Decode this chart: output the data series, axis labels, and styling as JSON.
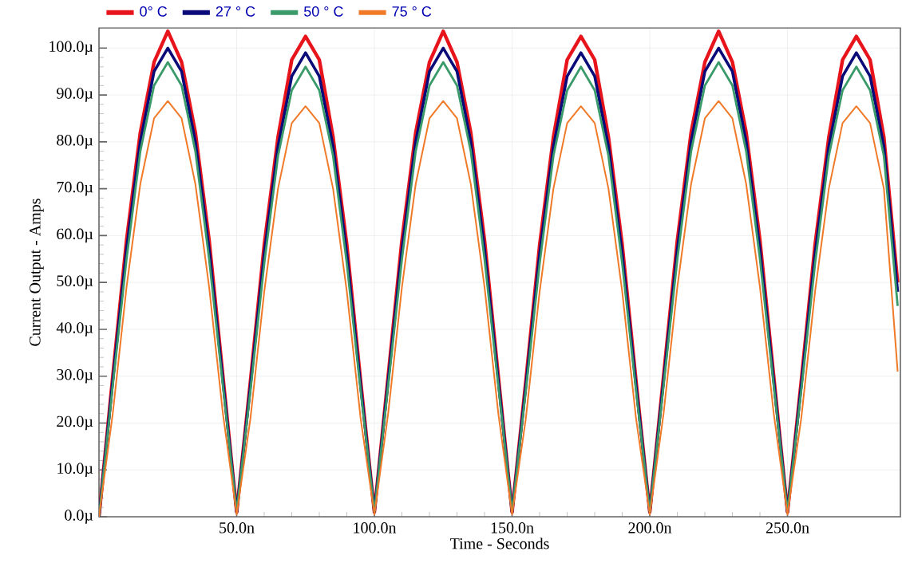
{
  "chart_data": {
    "type": "line",
    "xlabel": "Time - Seconds",
    "ylabel": "Current Output - Amps",
    "x": [
      0,
      5,
      10,
      15,
      20,
      25,
      30,
      35,
      40,
      45,
      50,
      55,
      60,
      65,
      70,
      75,
      80,
      85,
      90,
      95,
      100,
      105,
      110,
      115,
      120,
      125,
      130,
      135,
      140,
      145,
      150,
      155,
      160,
      165,
      170,
      175,
      180,
      185,
      190,
      195,
      200,
      205,
      210,
      215,
      220,
      225,
      230,
      235,
      240,
      245,
      250,
      255,
      260,
      265,
      270,
      275,
      280,
      285,
      290
    ],
    "series": [
      {
        "name": "0° C",
        "color": "#e8141c",
        "values": [
          0,
          30,
          59,
          82,
          97,
          103.6,
          97,
          82,
          59,
          30,
          1,
          29,
          58,
          81,
          97.5,
          102.5,
          97.5,
          81,
          58,
          29,
          1,
          30,
          59,
          82,
          97,
          103.6,
          97,
          82,
          59,
          30,
          1,
          29,
          58,
          81,
          97.5,
          102.5,
          97.5,
          81,
          58,
          29,
          1,
          30,
          59,
          82,
          97,
          103.6,
          97,
          82,
          59,
          30,
          1,
          29,
          58,
          81,
          97.5,
          102.5,
          97.5,
          81,
          50
        ]
      },
      {
        "name": "27 ° C",
        "color": "#0a0a78",
        "values": [
          0,
          29,
          57,
          80,
          95,
          100,
          95,
          80,
          57,
          29,
          1,
          28,
          56,
          79,
          94,
          99,
          94,
          79,
          56,
          28,
          1,
          29,
          57,
          80,
          95,
          100,
          95,
          80,
          57,
          29,
          1,
          28,
          56,
          79,
          94,
          99,
          94,
          79,
          56,
          28,
          1,
          29,
          57,
          80,
          95,
          100,
          95,
          80,
          57,
          29,
          1,
          28,
          56,
          79,
          94,
          99,
          94,
          79,
          48
        ]
      },
      {
        "name": "50 ° C",
        "color": "#3a9a6a",
        "values": [
          0,
          28,
          55,
          78,
          92,
          97,
          92,
          78,
          55,
          28,
          1,
          27,
          54,
          77,
          91,
          96,
          91,
          77,
          54,
          27,
          1,
          28,
          55,
          78,
          92,
          97,
          92,
          78,
          55,
          28,
          1,
          27,
          54,
          77,
          91,
          96,
          91,
          77,
          54,
          27,
          1,
          28,
          55,
          78,
          92,
          97,
          92,
          78,
          55,
          28,
          1,
          27,
          54,
          77,
          91,
          96,
          91,
          77,
          45
        ]
      },
      {
        "name": "75 ° C",
        "color": "#f07a28",
        "values": [
          0,
          22,
          49,
          71,
          85,
          88.7,
          85,
          71,
          49,
          22,
          0.5,
          21,
          48,
          70,
          84,
          87.6,
          84,
          70,
          48,
          21,
          0.5,
          22,
          49,
          71,
          85,
          88.7,
          85,
          71,
          49,
          22,
          0.5,
          21,
          48,
          70,
          84,
          87.6,
          84,
          70,
          48,
          21,
          0.5,
          22,
          49,
          71,
          85,
          88.7,
          85,
          71,
          49,
          22,
          0.5,
          21,
          48,
          70,
          84,
          87.6,
          84,
          70,
          31
        ]
      }
    ],
    "xlim": [
      0,
      291
    ],
    "xticks": [
      {
        "value": 50,
        "label": "50.0n"
      },
      {
        "value": 100,
        "label": "100.0n"
      },
      {
        "value": 150,
        "label": "150.0n"
      },
      {
        "value": 200,
        "label": "200.0n"
      },
      {
        "value": 250,
        "label": "250.0n"
      }
    ],
    "ylim": [
      0,
      104.3
    ],
    "yticks": [
      {
        "value": 0,
        "label": "0.0µ"
      },
      {
        "value": 10,
        "label": "10.0µ"
      },
      {
        "value": 20,
        "label": "20.0µ"
      },
      {
        "value": 30,
        "label": "30.0µ"
      },
      {
        "value": 40,
        "label": "40.0µ"
      },
      {
        "value": 50,
        "label": "50.0µ"
      },
      {
        "value": 60,
        "label": "60.0µ"
      },
      {
        "value": 70,
        "label": "70.0µ"
      },
      {
        "value": 80,
        "label": "80.0µ"
      },
      {
        "value": 90,
        "label": "90.0µ"
      },
      {
        "value": 100,
        "label": "100.0µ"
      }
    ],
    "grid": true,
    "legend": "top",
    "line_style": "solid",
    "marker": "none"
  }
}
